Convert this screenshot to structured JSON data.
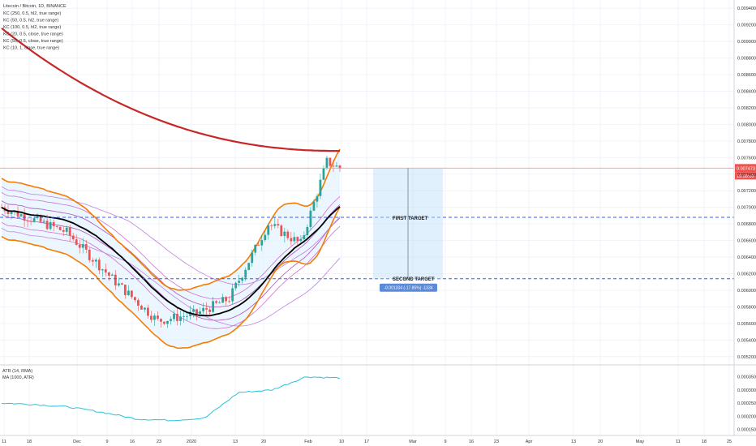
{
  "header": {
    "title": "Litecoin / Bitcoin, 1D, BINANCE",
    "indicators": [
      "KC (250, 0.5, hl2, true range)",
      "KC (50, 0.5, hl2, true range)",
      "KC (100, 0.5, hl2, true range)",
      "KC (20, 0.5, close, true range)",
      "KC (50, 0.5, close, true range)",
      "KC (10, 1, close, true range)"
    ]
  },
  "price_axis": {
    "ticks": [
      "0.009400",
      "0.009200",
      "0.009000",
      "0.008800",
      "0.008600",
      "0.008400",
      "0.008200",
      "0.008000",
      "0.007800",
      "0.007600",
      "0.007400",
      "0.007200",
      "0.007000",
      "0.006800",
      "0.006600",
      "0.006400",
      "0.006200",
      "0.006000",
      "0.005800",
      "0.005600",
      "0.005400",
      "0.005200"
    ],
    "current_price": "0.007473",
    "countdown": "15:38:10"
  },
  "atr_pane": {
    "labels": [
      "ATR (14, RMA)",
      "MA (1000, ATR)"
    ],
    "ticks": [
      "0.000350",
      "0.000300",
      "0.000250",
      "0.000200",
      "0.000150"
    ]
  },
  "date_axis": {
    "ticks": [
      "11",
      "18",
      "Dec",
      "9",
      "16",
      "23",
      "2020",
      "13",
      "20",
      "Feb",
      "10",
      "17",
      "Mar",
      "9",
      "16",
      "23",
      "Apr",
      "13",
      "20",
      "May",
      "11",
      "18",
      "25"
    ]
  },
  "annotations": {
    "first_target": "FIRST TARGET",
    "second_target": "SECOND TARGET",
    "measure_label": "-0.001334 (-17.85%) -1334"
  },
  "colors": {
    "up": "#26a69a",
    "down": "#ef5350",
    "ma250": "#c62828",
    "orange_band": "#f57c00",
    "black_mid": "#000000",
    "magenta": "#c060c0",
    "target_line": "#2962ff",
    "measure_box": "#2962ff",
    "atr": "#26c6da"
  },
  "chart_data": {
    "type": "candlestick",
    "title": "Litecoin / Bitcoin, 1D, BINANCE",
    "ylim": [
      0.0051,
      0.0095
    ],
    "x": [
      "Nov 11",
      "Nov 18",
      "Dec 2",
      "Dec 9",
      "Dec 16",
      "Dec 23",
      "Jan 1",
      "Jan 13",
      "Jan 20",
      "Feb 3",
      "Feb 10"
    ],
    "close": [
      0.0068,
      0.00678,
      0.00665,
      0.00605,
      0.00575,
      0.00563,
      0.00583,
      0.00685,
      0.00655,
      0.00755,
      0.00747
    ],
    "series": [
      {
        "name": "ATR (14, RMA)",
        "values": [
          0.00025,
          0.000245,
          0.000235,
          0.000215,
          0.00019,
          0.000185,
          0.000193,
          0.00029,
          0.0003,
          0.00035,
          0.000345
        ]
      }
    ],
    "current_price": 0.007473,
    "first_target": 0.00688,
    "second_target": 0.006139,
    "measure": {
      "from": 0.007473,
      "to": 0.006139,
      "change": -0.001334,
      "percent": -17.85
    }
  }
}
